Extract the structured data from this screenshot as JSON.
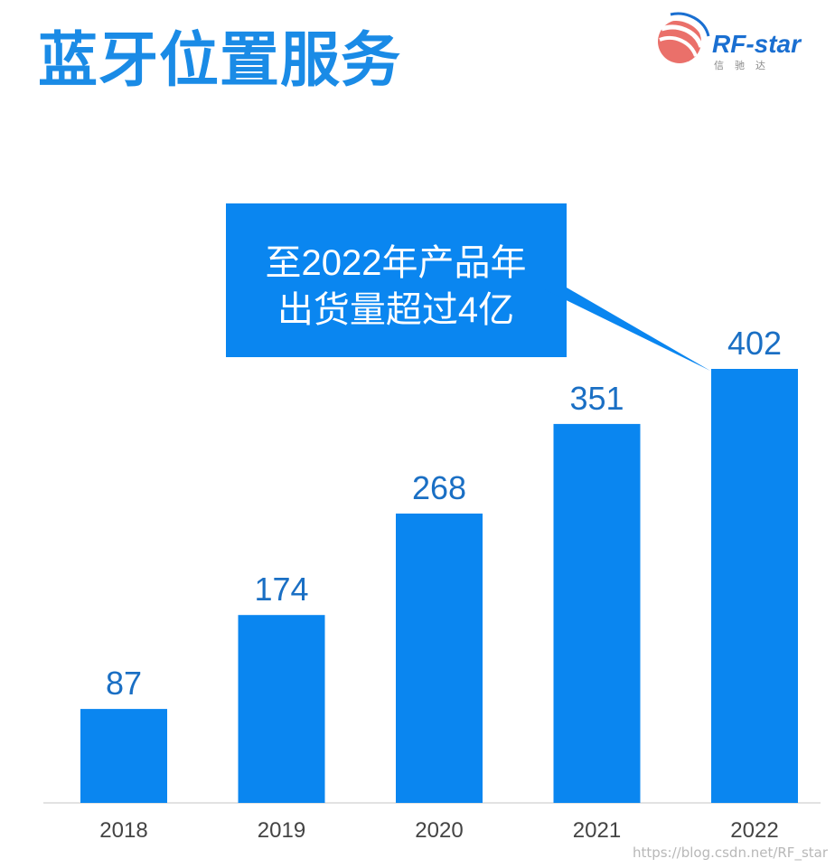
{
  "header": {
    "title": "蓝牙位置服务"
  },
  "logo": {
    "name": "RF-star",
    "subtitle": "信驰达",
    "icon": "rf-star-globe-icon",
    "colors": {
      "red": "#e8605a",
      "blue": "#1a6fd1"
    }
  },
  "callout": {
    "lines": [
      "至2022年产品年",
      "出货量超过4亿"
    ],
    "color": "#0a86f0"
  },
  "watermark": "https://blog.csdn.net/RF_star",
  "chart_data": {
    "type": "bar",
    "categories": [
      "2018",
      "2019",
      "2020",
      "2021",
      "2022"
    ],
    "values": [
      87,
      174,
      268,
      351,
      402
    ],
    "data_labels": [
      "87",
      "174",
      "268",
      "351",
      "402"
    ],
    "ylim": [
      0,
      402
    ],
    "grid": false,
    "y_axis_visible": false,
    "bar_color": "#0a86f0",
    "value_label_color": "#1a6fc4"
  }
}
